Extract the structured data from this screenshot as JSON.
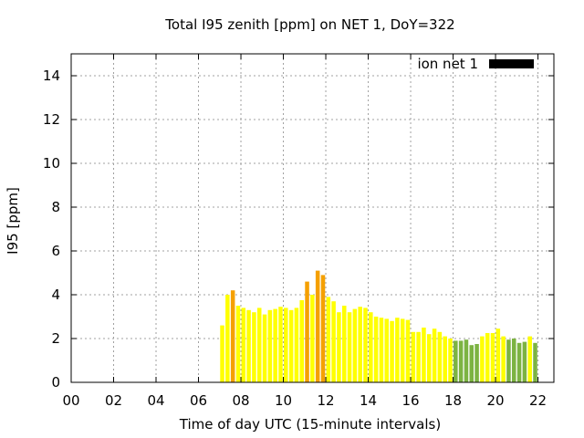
{
  "chart_data": {
    "type": "bar",
    "title": "Total I95 zenith [ppm] on NET 1, DoY=322",
    "xlabel": "Time of day UTC (15-minute intervals)",
    "ylabel": "I95 [ppm]",
    "xlim": [
      0,
      22.75
    ],
    "ylim": [
      0,
      15
    ],
    "x_ticks": [
      0,
      2,
      4,
      6,
      8,
      10,
      12,
      14,
      16,
      18,
      20,
      22
    ],
    "x_tick_labels": [
      "00",
      "02",
      "04",
      "06",
      "08",
      "10",
      "12",
      "14",
      "16",
      "18",
      "20",
      "22"
    ],
    "y_ticks": [
      0,
      2,
      4,
      6,
      8,
      10,
      12,
      14
    ],
    "y_tick_labels": [
      "0",
      "2",
      "4",
      "6",
      "8",
      "10",
      "12",
      "14"
    ],
    "grid": true,
    "legend": {
      "placement": "top-right",
      "entries": [
        {
          "label": "ion net 1",
          "color": "#000000"
        }
      ]
    },
    "colors": {
      "low": "#7cb342",
      "mid": "#ffff00",
      "high": "#f5a000"
    },
    "series": [
      {
        "start_hour": 7.0,
        "interval_hours": 0.25,
        "values": [
          2.6,
          4.0,
          4.2,
          3.5,
          3.4,
          3.3,
          3.2,
          3.4,
          3.1,
          3.3,
          3.35,
          3.45,
          3.4,
          3.3,
          3.4,
          3.75,
          4.6,
          4.0,
          5.1,
          4.9,
          3.9,
          3.7,
          3.2,
          3.5,
          3.2,
          3.35,
          3.45,
          3.4,
          3.2,
          3.0,
          2.95,
          2.9,
          2.8,
          2.95,
          2.9,
          2.85,
          2.3,
          2.3,
          2.5,
          2.2,
          2.45,
          2.3,
          2.1,
          2.0,
          1.9,
          1.9,
          1.95,
          1.7,
          1.75,
          2.1,
          2.25,
          2.25,
          2.45,
          2.1,
          1.95,
          2.0,
          1.8,
          1.85,
          2.1,
          1.8
        ],
        "levels": [
          "mid",
          "mid",
          "high",
          "mid",
          "mid",
          "mid",
          "mid",
          "mid",
          "mid",
          "mid",
          "mid",
          "mid",
          "mid",
          "mid",
          "mid",
          "mid",
          "high",
          "mid",
          "high",
          "high",
          "mid",
          "mid",
          "mid",
          "mid",
          "mid",
          "mid",
          "mid",
          "mid",
          "mid",
          "mid",
          "mid",
          "mid",
          "mid",
          "mid",
          "mid",
          "mid",
          "mid",
          "mid",
          "mid",
          "mid",
          "mid",
          "mid",
          "mid",
          "mid",
          "low",
          "low",
          "low",
          "low",
          "low",
          "mid",
          "mid",
          "mid",
          "mid",
          "mid",
          "low",
          "low",
          "low",
          "low",
          "mid",
          "low"
        ]
      }
    ]
  }
}
